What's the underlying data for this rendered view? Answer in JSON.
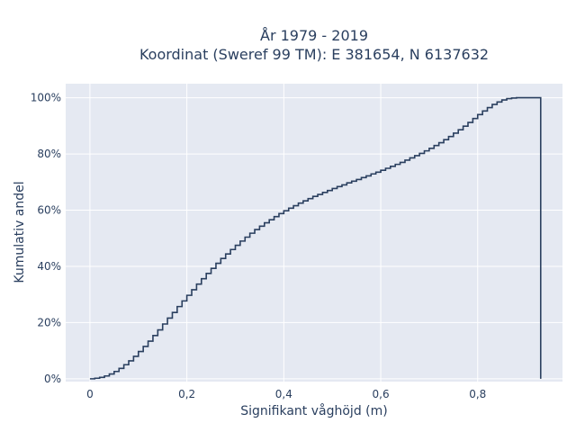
{
  "chart_data": {
    "type": "line",
    "line_shape": "step",
    "title_lines": [
      "År 1979 - 2019",
      "Koordinat (Sweref 99 TM): E 381654, N 6137632"
    ],
    "xlabel": "Signifikant våghöjd (m)",
    "ylabel": "Kumulativ andel",
    "xlim": [
      -0.05,
      0.975
    ],
    "ylim": [
      -0.01,
      1.05
    ],
    "x_ticks": [
      0,
      0.2,
      0.4,
      0.6,
      0.8
    ],
    "x_tick_labels": [
      "0",
      "0,2",
      "0,4",
      "0,6",
      "0,8"
    ],
    "y_ticks": [
      0,
      0.2,
      0.4,
      0.6,
      0.8,
      1.0
    ],
    "y_tick_labels": [
      "0%",
      "20%",
      "40%",
      "60%",
      "80%",
      "100%"
    ],
    "grid": true,
    "background_color": "#e5e9f2",
    "grid_color": "#ffffff",
    "line_color": "#2a3f5f",
    "series": [
      {
        "x": [
          0,
          0.01,
          0.02,
          0.03,
          0.04,
          0.05,
          0.06,
          0.07,
          0.08,
          0.09,
          0.1,
          0.11,
          0.12,
          0.13,
          0.14,
          0.15,
          0.16,
          0.17,
          0.18,
          0.19,
          0.2,
          0.21,
          0.22,
          0.23,
          0.24,
          0.25,
          0.26,
          0.27,
          0.28,
          0.29,
          0.3,
          0.31,
          0.32,
          0.33,
          0.34,
          0.35,
          0.36,
          0.37,
          0.38,
          0.39,
          0.4,
          0.41,
          0.42,
          0.43,
          0.44,
          0.45,
          0.46,
          0.47,
          0.48,
          0.49,
          0.5,
          0.51,
          0.52,
          0.53,
          0.54,
          0.55,
          0.56,
          0.57,
          0.58,
          0.59,
          0.6,
          0.61,
          0.62,
          0.63,
          0.64,
          0.65,
          0.66,
          0.67,
          0.68,
          0.69,
          0.7,
          0.71,
          0.72,
          0.73,
          0.74,
          0.75,
          0.76,
          0.77,
          0.78,
          0.79,
          0.8,
          0.81,
          0.82,
          0.83,
          0.84,
          0.85,
          0.86,
          0.87,
          0.88,
          0.89,
          0.9,
          0.91,
          0.92,
          0.93
        ],
        "y": [
          0.0,
          0.002,
          0.005,
          0.01,
          0.017,
          0.026,
          0.037,
          0.05,
          0.064,
          0.08,
          0.097,
          0.115,
          0.134,
          0.154,
          0.174,
          0.195,
          0.216,
          0.236,
          0.257,
          0.277,
          0.297,
          0.317,
          0.337,
          0.356,
          0.375,
          0.393,
          0.411,
          0.428,
          0.444,
          0.46,
          0.475,
          0.49,
          0.504,
          0.518,
          0.531,
          0.543,
          0.555,
          0.566,
          0.577,
          0.588,
          0.598,
          0.607,
          0.616,
          0.625,
          0.633,
          0.641,
          0.649,
          0.656,
          0.663,
          0.67,
          0.677,
          0.684,
          0.69,
          0.697,
          0.703,
          0.709,
          0.716,
          0.722,
          0.729,
          0.735,
          0.742,
          0.749,
          0.756,
          0.763,
          0.77,
          0.778,
          0.786,
          0.794,
          0.802,
          0.811,
          0.82,
          0.83,
          0.84,
          0.851,
          0.862,
          0.874,
          0.886,
          0.899,
          0.912,
          0.926,
          0.94,
          0.953,
          0.965,
          0.976,
          0.985,
          0.992,
          0.997,
          0.999,
          1.0,
          1.0,
          1.0,
          1.0,
          1.0,
          0.0
        ]
      }
    ]
  }
}
